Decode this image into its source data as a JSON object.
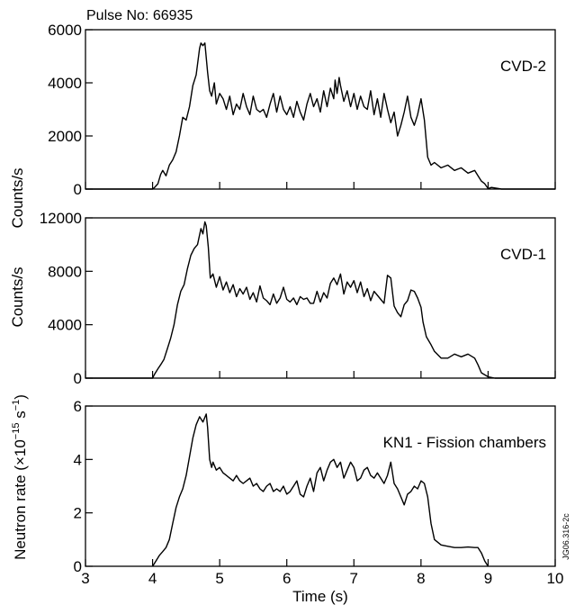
{
  "header": {
    "pulse": "Pulse No: 66935"
  },
  "footer": {
    "code": "JG06.316-2c"
  },
  "chart_data": [
    {
      "type": "line",
      "panel_label": "CVD-2",
      "ylabel": "Counts/s",
      "xlim": [
        3,
        10
      ],
      "ylim": [
        0,
        6000
      ],
      "yticks": [
        "0",
        "2000",
        "4000",
        "6000"
      ],
      "series": [
        {
          "x": [
            3.0,
            3.5,
            4.0,
            4.03,
            4.08,
            4.12,
            4.15,
            4.2,
            4.25,
            4.3,
            4.35,
            4.4,
            4.45,
            4.5,
            4.55,
            4.6,
            4.65,
            4.7,
            4.72,
            4.75,
            4.78,
            4.82,
            4.85,
            4.88,
            4.92,
            4.95,
            5.0,
            5.05,
            5.1,
            5.15,
            5.2,
            5.25,
            5.3,
            5.35,
            5.4,
            5.45,
            5.5,
            5.55,
            5.6,
            5.65,
            5.7,
            5.75,
            5.8,
            5.85,
            5.9,
            5.95,
            6.0,
            6.05,
            6.1,
            6.15,
            6.2,
            6.25,
            6.3,
            6.35,
            6.4,
            6.45,
            6.5,
            6.55,
            6.6,
            6.65,
            6.7,
            6.72,
            6.75,
            6.78,
            6.8,
            6.85,
            6.9,
            6.95,
            7.0,
            7.05,
            7.1,
            7.15,
            7.2,
            7.25,
            7.3,
            7.35,
            7.4,
            7.45,
            7.5,
            7.55,
            7.6,
            7.65,
            7.7,
            7.75,
            7.8,
            7.85,
            7.9,
            7.95,
            8.0,
            8.02,
            8.05,
            8.1,
            8.15,
            8.2,
            8.3,
            8.4,
            8.5,
            8.6,
            8.7,
            8.8,
            8.85,
            8.9,
            8.95,
            9.0,
            9.05,
            9.2,
            9.5,
            10.0
          ],
          "y": [
            0,
            0,
            0,
            60,
            200,
            550,
            700,
            500,
            900,
            1100,
            1400,
            2000,
            2700,
            2600,
            3100,
            3900,
            4300,
            5300,
            5500,
            5400,
            5500,
            4400,
            3700,
            3500,
            4000,
            3200,
            3600,
            3400,
            3000,
            3500,
            2800,
            3200,
            3000,
            3600,
            3100,
            2800,
            3500,
            3000,
            2900,
            3000,
            2700,
            3200,
            3600,
            2900,
            3500,
            3000,
            2800,
            3100,
            2700,
            3300,
            2900,
            2600,
            3200,
            3600,
            3100,
            3400,
            2900,
            3700,
            3100,
            3800,
            3400,
            4100,
            3600,
            4200,
            3900,
            3300,
            3700,
            3100,
            3600,
            3000,
            3500,
            3100,
            3000,
            3700,
            2800,
            3400,
            2700,
            3600,
            3000,
            2500,
            2900,
            2000,
            2400,
            2900,
            3500,
            2700,
            2400,
            2800,
            3400,
            3100,
            2600,
            1200,
            900,
            1000,
            800,
            900,
            700,
            800,
            600,
            700,
            500,
            300,
            200,
            20,
            60,
            0,
            0,
            0
          ]
        }
      ]
    },
    {
      "type": "line",
      "panel_label": "CVD-1",
      "ylabel": "Counts/s",
      "xlim": [
        3,
        10
      ],
      "ylim": [
        0,
        12000
      ],
      "yticks": [
        "0",
        "4000",
        "8000",
        "12000"
      ],
      "series": [
        {
          "x": [
            3.0,
            3.5,
            4.0,
            4.03,
            4.08,
            4.12,
            4.17,
            4.22,
            4.27,
            4.32,
            4.37,
            4.42,
            4.47,
            4.52,
            4.57,
            4.62,
            4.67,
            4.72,
            4.75,
            4.78,
            4.8,
            4.83,
            4.86,
            4.9,
            4.95,
            5.0,
            5.05,
            5.1,
            5.15,
            5.2,
            5.25,
            5.3,
            5.35,
            5.4,
            5.45,
            5.5,
            5.55,
            5.6,
            5.65,
            5.7,
            5.75,
            5.8,
            5.85,
            5.9,
            5.95,
            6.0,
            6.05,
            6.1,
            6.15,
            6.2,
            6.25,
            6.3,
            6.35,
            6.4,
            6.45,
            6.5,
            6.55,
            6.6,
            6.65,
            6.7,
            6.75,
            6.8,
            6.85,
            6.9,
            6.95,
            7.0,
            7.05,
            7.1,
            7.15,
            7.2,
            7.25,
            7.3,
            7.35,
            7.4,
            7.45,
            7.5,
            7.55,
            7.6,
            7.65,
            7.7,
            7.75,
            7.8,
            7.85,
            7.9,
            7.95,
            8.0,
            8.03,
            8.08,
            8.15,
            8.2,
            8.3,
            8.4,
            8.5,
            8.6,
            8.7,
            8.8,
            8.85,
            8.9,
            9.0,
            9.1,
            9.5,
            10.0
          ],
          "y": [
            0,
            0,
            0,
            300,
            700,
            1000,
            1400,
            2200,
            3000,
            4000,
            5500,
            6500,
            7000,
            8200,
            9200,
            9700,
            10000,
            11200,
            10800,
            11700,
            11400,
            9800,
            7500,
            7800,
            6800,
            7600,
            6600,
            7200,
            6400,
            7000,
            6100,
            6700,
            6300,
            6800,
            5900,
            6400,
            5700,
            6900,
            6000,
            5800,
            5500,
            6300,
            5600,
            6000,
            6800,
            5900,
            5700,
            6000,
            5500,
            6100,
            5900,
            6000,
            5600,
            5600,
            6500,
            5700,
            6400,
            6000,
            7100,
            7500,
            7000,
            7800,
            6300,
            7200,
            6800,
            7300,
            6400,
            7200,
            6100,
            6700,
            5800,
            6500,
            6200,
            5900,
            5600,
            7700,
            7500,
            5400,
            4900,
            4600,
            5500,
            5800,
            6600,
            6500,
            6000,
            5300,
            4200,
            3100,
            2500,
            2000,
            1500,
            1500,
            1800,
            1600,
            1800,
            1500,
            1000,
            400,
            100,
            0,
            0,
            0
          ]
        }
      ]
    },
    {
      "type": "line",
      "panel_label": "KN1 - Fission chambers",
      "ylabel": "Neutron rate (×10⁻¹⁵ s⁻¹)",
      "ylabel_main": "Neutron rate (×10",
      "ylabel_exp1": "−15",
      "ylabel_unit": " s",
      "ylabel_exp2": "−1",
      "ylabel_close": ")",
      "xlabel": "Time (s)",
      "xlim": [
        3,
        10
      ],
      "ylim": [
        0,
        6
      ],
      "xticks": [
        "3",
        "4",
        "5",
        "6",
        "7",
        "8",
        "9",
        "10"
      ],
      "yticks": [
        "0",
        "2",
        "4",
        "6"
      ],
      "series": [
        {
          "x": [
            4.0,
            4.05,
            4.1,
            4.15,
            4.2,
            4.25,
            4.3,
            4.35,
            4.4,
            4.45,
            4.5,
            4.55,
            4.6,
            4.65,
            4.7,
            4.75,
            4.8,
            4.82,
            4.85,
            4.88,
            4.9,
            4.95,
            5.0,
            5.05,
            5.1,
            5.15,
            5.2,
            5.25,
            5.3,
            5.35,
            5.4,
            5.45,
            5.5,
            5.55,
            5.6,
            5.65,
            5.7,
            5.75,
            5.8,
            5.85,
            5.9,
            5.95,
            6.0,
            6.05,
            6.1,
            6.15,
            6.2,
            6.25,
            6.3,
            6.35,
            6.4,
            6.45,
            6.5,
            6.55,
            6.6,
            6.65,
            6.7,
            6.75,
            6.8,
            6.85,
            6.9,
            6.95,
            7.0,
            7.05,
            7.1,
            7.15,
            7.2,
            7.25,
            7.3,
            7.35,
            7.4,
            7.45,
            7.5,
            7.55,
            7.6,
            7.65,
            7.7,
            7.75,
            7.8,
            7.85,
            7.9,
            7.95,
            8.0,
            8.05,
            8.1,
            8.15,
            8.2,
            8.3,
            8.4,
            8.5,
            8.6,
            8.7,
            8.8,
            8.85,
            8.9,
            8.95,
            9.0
          ],
          "y": [
            0,
            0.2,
            0.4,
            0.55,
            0.7,
            1.0,
            1.6,
            2.2,
            2.6,
            2.9,
            3.4,
            4.1,
            4.8,
            5.3,
            5.6,
            5.4,
            5.7,
            5.2,
            4.0,
            3.7,
            3.9,
            3.6,
            3.7,
            3.5,
            3.4,
            3.3,
            3.2,
            3.4,
            3.2,
            3.1,
            3.2,
            3.3,
            3.0,
            3.1,
            2.9,
            2.8,
            3.0,
            3.1,
            2.8,
            2.9,
            2.8,
            3.0,
            2.7,
            2.8,
            3.0,
            3.2,
            2.7,
            2.6,
            3.0,
            3.3,
            2.8,
            3.5,
            3.7,
            3.2,
            3.6,
            3.9,
            4.0,
            3.7,
            3.9,
            3.3,
            3.6,
            3.9,
            3.7,
            3.2,
            3.3,
            3.6,
            3.7,
            3.4,
            3.3,
            3.5,
            3.3,
            3.1,
            3.4,
            3.9,
            3.1,
            2.9,
            2.6,
            2.3,
            2.7,
            2.8,
            3.0,
            2.9,
            3.2,
            3.1,
            2.6,
            1.6,
            1.0,
            0.8,
            0.75,
            0.7,
            0.7,
            0.72,
            0.7,
            0.7,
            0.5,
            0.2,
            0.0
          ]
        }
      ]
    }
  ]
}
